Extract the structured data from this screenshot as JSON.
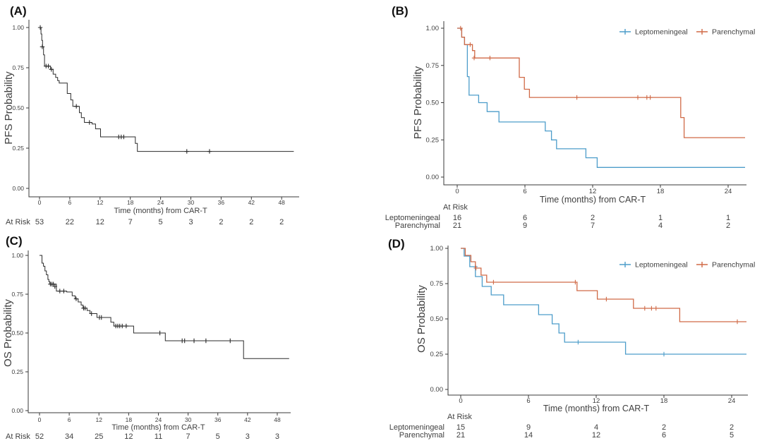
{
  "figure": {
    "type": "kaplan-meier-survival-figure",
    "panel_labels": [
      "(A)",
      "(B)",
      "(C)",
      "(D)"
    ]
  },
  "colors": {
    "leptomeningeal": "#4d9dca",
    "parenchymal": "#d06a47",
    "single_curve": "#2b2b2b",
    "axis": "#3a3a3a",
    "tick_text": "#4d4d4d",
    "label_text": "#262626"
  },
  "chart_data": {
    "type": "km_survival_multipanel",
    "legend": {
      "items": [
        {
          "label": "Leptomeningeal",
          "color": "#4d9dca"
        },
        {
          "label": "Parenchymal",
          "color": "#d06a47"
        }
      ]
    },
    "panels": [
      {
        "id": "A",
        "label": "(A)",
        "ylabel": "PFS  Probability",
        "xlabel": "Time (months) from CAR-T",
        "xticks": [
          0,
          6,
          12,
          18,
          24,
          30,
          36,
          42,
          48
        ],
        "ytick_labels": [
          "1.00",
          "0.75",
          "0.50",
          "0.25",
          "0.00"
        ],
        "legend": false,
        "at_risk": {
          "label": "At Risk",
          "rows": [
            {
              "name": "",
              "counts": [
                53,
                22,
                12,
                7,
                5,
                3,
                2,
                2,
                2
              ]
            }
          ]
        },
        "series": [
          {
            "group": "all",
            "color": "#2b2b2b",
            "steps": [
              [
                0,
                1.0
              ],
              [
                0.3,
                0.96
              ],
              [
                0.45,
                0.92
              ],
              [
                0.6,
                0.88
              ],
              [
                0.8,
                0.83
              ],
              [
                1.0,
                0.76
              ],
              [
                2.2,
                0.74
              ],
              [
                2.7,
                0.71
              ],
              [
                3.2,
                0.69
              ],
              [
                3.6,
                0.67
              ],
              [
                3.9,
                0.655
              ],
              [
                5.5,
                0.59
              ],
              [
                6.2,
                0.55
              ],
              [
                6.6,
                0.51
              ],
              [
                7.9,
                0.47
              ],
              [
                8.3,
                0.44
              ],
              [
                8.9,
                0.41
              ],
              [
                10.4,
                0.4
              ],
              [
                11.1,
                0.37
              ],
              [
                12.1,
                0.32
              ],
              [
                19.0,
                0.28
              ],
              [
                19.4,
                0.23
              ],
              [
                50.4,
                0.23
              ]
            ],
            "censors": [
              [
                0.15,
                1.0
              ],
              [
                0.55,
                0.88
              ],
              [
                1.3,
                0.76
              ],
              [
                1.75,
                0.76
              ],
              [
                2.35,
                0.74
              ],
              [
                7.3,
                0.51
              ],
              [
                9.9,
                0.41
              ],
              [
                15.7,
                0.32
              ],
              [
                16.2,
                0.32
              ],
              [
                16.7,
                0.32
              ],
              [
                29.2,
                0.23
              ],
              [
                33.7,
                0.23
              ]
            ]
          }
        ]
      },
      {
        "id": "B",
        "label": "(B)",
        "ylabel": "PFS  Probability",
        "xlabel": "Time (months) from CAR-T",
        "xticks": [
          0,
          6,
          12,
          18,
          24
        ],
        "ytick_labels": [
          "1.00",
          "0.75",
          "0.50",
          "0.25",
          "0.00"
        ],
        "legend": true,
        "at_risk": {
          "label": "At Risk",
          "rows": [
            {
              "name": "Leptomeningeal",
              "counts": [
                16,
                6,
                2,
                1,
                1
              ]
            },
            {
              "name": "Parenchymal",
              "counts": [
                21,
                9,
                7,
                4,
                2
              ]
            }
          ]
        },
        "series": [
          {
            "group": "Leptomeningeal",
            "color": "#4d9dca",
            "steps": [
              [
                0,
                1.0
              ],
              [
                0.4,
                0.94
              ],
              [
                0.65,
                0.89
              ],
              [
                0.9,
                0.675
              ],
              [
                1.05,
                0.55
              ],
              [
                1.9,
                0.5
              ],
              [
                2.65,
                0.44
              ],
              [
                3.7,
                0.37
              ],
              [
                7.8,
                0.31
              ],
              [
                8.35,
                0.25
              ],
              [
                8.8,
                0.19
              ],
              [
                11.4,
                0.13
              ],
              [
                12.4,
                0.065
              ],
              [
                25.5,
                0.065
              ]
            ],
            "censors": []
          },
          {
            "group": "Parenchymal",
            "color": "#d06a47",
            "steps": [
              [
                0,
                1.0
              ],
              [
                0.4,
                0.94
              ],
              [
                0.65,
                0.89
              ],
              [
                1.35,
                0.85
              ],
              [
                1.55,
                0.8
              ],
              [
                5.5,
                0.67
              ],
              [
                5.95,
                0.59
              ],
              [
                6.4,
                0.535
              ],
              [
                19.8,
                0.4
              ],
              [
                20.1,
                0.265
              ],
              [
                25.5,
                0.265
              ]
            ],
            "censors": [
              [
                0.3,
                1.0
              ],
              [
                1.15,
                0.89
              ],
              [
                1.5,
                0.8
              ],
              [
                2.9,
                0.8
              ],
              [
                10.6,
                0.535
              ],
              [
                16.0,
                0.535
              ],
              [
                16.8,
                0.535
              ],
              [
                17.1,
                0.535
              ]
            ]
          }
        ]
      },
      {
        "id": "C",
        "label": "(C)",
        "ylabel": "OS  Probability",
        "xlabel": "Time (months) from CAR-T",
        "xticks": [
          0,
          6,
          12,
          18,
          24,
          30,
          36,
          42,
          48
        ],
        "ytick_labels": [
          "1.00",
          "0.75",
          "0.50",
          "0.25",
          "0.00"
        ],
        "legend": false,
        "at_risk": {
          "label": "At Risk",
          "rows": [
            {
              "name": "",
              "counts": [
                52,
                34,
                25,
                12,
                11,
                7,
                5,
                3,
                3
              ]
            }
          ]
        },
        "series": [
          {
            "group": "all",
            "color": "#2b2b2b",
            "steps": [
              [
                0,
                1.0
              ],
              [
                0.5,
                0.95
              ],
              [
                0.8,
                0.93
              ],
              [
                1.1,
                0.9
              ],
              [
                1.4,
                0.875
              ],
              [
                1.7,
                0.845
              ],
              [
                1.9,
                0.83
              ],
              [
                2.1,
                0.815
              ],
              [
                3.4,
                0.77
              ],
              [
                5.5,
                0.764
              ],
              [
                6.6,
                0.74
              ],
              [
                7.2,
                0.72
              ],
              [
                7.8,
                0.7
              ],
              [
                8.4,
                0.68
              ],
              [
                8.8,
                0.66
              ],
              [
                9.6,
                0.645
              ],
              [
                10.2,
                0.625
              ],
              [
                11.6,
                0.6
              ],
              [
                14.4,
                0.57
              ],
              [
                15.0,
                0.545
              ],
              [
                19.0,
                0.5
              ],
              [
                25.4,
                0.45
              ],
              [
                41.2,
                0.335
              ],
              [
                50.4,
                0.335
              ]
            ],
            "censors": [
              [
                2.2,
                0.815
              ],
              [
                2.5,
                0.815
              ],
              [
                2.8,
                0.815
              ],
              [
                3.1,
                0.8
              ],
              [
                4.1,
                0.77
              ],
              [
                4.9,
                0.77
              ],
              [
                7.4,
                0.72
              ],
              [
                8.9,
                0.66
              ],
              [
                9.2,
                0.66
              ],
              [
                10.5,
                0.625
              ],
              [
                12.1,
                0.6
              ],
              [
                12.5,
                0.6
              ],
              [
                15.4,
                0.545
              ],
              [
                15.8,
                0.545
              ],
              [
                16.2,
                0.545
              ],
              [
                16.7,
                0.545
              ],
              [
                17.5,
                0.545
              ],
              [
                24.3,
                0.5
              ],
              [
                28.8,
                0.45
              ],
              [
                29.3,
                0.45
              ],
              [
                31.2,
                0.45
              ],
              [
                33.6,
                0.45
              ],
              [
                38.5,
                0.45
              ]
            ]
          }
        ]
      },
      {
        "id": "D",
        "label": "(D)",
        "ylabel": "OS  Probability",
        "xlabel": "Time (months) from CAR-T",
        "xticks": [
          0,
          6,
          12,
          18,
          24
        ],
        "ytick_labels": [
          "1.00",
          "0.75",
          "0.50",
          "0.25",
          "0.00"
        ],
        "legend": true,
        "at_risk": {
          "label": "At Risk",
          "rows": [
            {
              "name": "Leptomeningeal",
              "counts": [
                15,
                9,
                4,
                2,
                2
              ]
            },
            {
              "name": "Parenchymal",
              "counts": [
                21,
                14,
                12,
                6,
                5
              ]
            }
          ]
        },
        "series": [
          {
            "group": "Leptomeningeal",
            "color": "#4d9dca",
            "steps": [
              [
                0,
                1.0
              ],
              [
                0.3,
                0.945
              ],
              [
                0.8,
                0.87
              ],
              [
                1.3,
                0.8
              ],
              [
                1.9,
                0.73
              ],
              [
                2.7,
                0.67
              ],
              [
                3.8,
                0.6
              ],
              [
                6.9,
                0.53
              ],
              [
                8.1,
                0.465
              ],
              [
                8.7,
                0.4
              ],
              [
                9.2,
                0.335
              ],
              [
                14.6,
                0.25
              ],
              [
                25.5,
                0.25
              ]
            ],
            "censors": [
              [
                1.3,
                0.87
              ],
              [
                10.4,
                0.335
              ],
              [
                18.0,
                0.25
              ]
            ]
          },
          {
            "group": "Parenchymal",
            "color": "#d06a47",
            "steps": [
              [
                0,
                1.0
              ],
              [
                0.4,
                0.95
              ],
              [
                0.9,
                0.905
              ],
              [
                1.3,
                0.86
              ],
              [
                1.8,
                0.81
              ],
              [
                2.3,
                0.76
              ],
              [
                10.3,
                0.7
              ],
              [
                12.1,
                0.64
              ],
              [
                15.3,
                0.575
              ],
              [
                19.4,
                0.48
              ],
              [
                25.5,
                0.48
              ]
            ],
            "censors": [
              [
                1.35,
                0.86
              ],
              [
                2.9,
                0.76
              ],
              [
                10.15,
                0.76
              ],
              [
                12.9,
                0.64
              ],
              [
                16.3,
                0.575
              ],
              [
                16.9,
                0.575
              ],
              [
                17.3,
                0.575
              ],
              [
                24.5,
                0.48
              ]
            ]
          }
        ]
      }
    ]
  }
}
